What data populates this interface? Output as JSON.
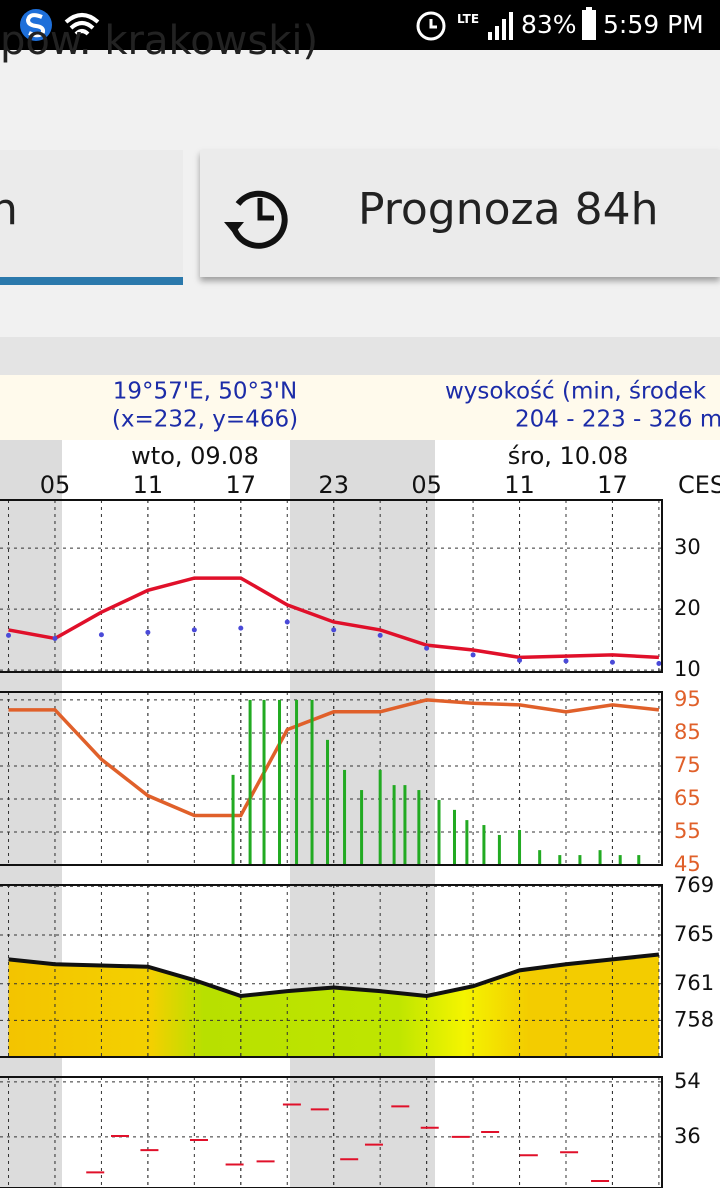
{
  "status_bar": {
    "network": "LTE",
    "battery": "83%",
    "time": "5:59 PM"
  },
  "header": {
    "title": "pow. krakowski)"
  },
  "tabs": [
    {
      "label": "h"
    },
    {
      "label": "Prognoza 84h"
    }
  ],
  "meteogram": {
    "coordinates": "19°57'E, 50°3'N",
    "grid_point": "(x=232, y=466)",
    "elevation_label": "wysokość (min, środek",
    "elevation": "204 - 223 - 326 m",
    "days": [
      "wto, 09.08",
      "śro, 10.08"
    ],
    "timezone": "CES"
  },
  "chart_data": [
    {
      "type": "line",
      "x": [
        2,
        5,
        8,
        11,
        14,
        17,
        20,
        23,
        26,
        29,
        32,
        35,
        38,
        41,
        44
      ],
      "xlim": [
        1.45,
        44.2
      ],
      "xticks": [
        {
          "value": 5,
          "label": "05"
        },
        11,
        17,
        23,
        {
          "value": 29,
          "label": "05"
        },
        {
          "value": 35,
          "label": "11"
        },
        {
          "value": 41,
          "label": "17"
        }
      ],
      "ylim": [
        9.7,
        37.9
      ],
      "yticks": [
        30,
        20,
        10
      ],
      "ytick_color": "#111111",
      "grid": true,
      "series": [
        {
          "color": "#e0102a",
          "values": [
            16.6,
            15.2,
            19.5,
            23.1,
            25.1,
            25.1,
            20.7,
            17.9,
            16.6,
            14.1,
            13.3,
            12.1,
            12.3,
            12.5,
            12.1
          ]
        },
        {
          "color": "#4a4ad8",
          "style": "dotted",
          "values": [
            15.7,
            15.2,
            15.8,
            16.2,
            16.6,
            16.9,
            17.9,
            16.6,
            15.7,
            13.6,
            12.5,
            11.6,
            11.5,
            11.3,
            11.1
          ]
        }
      ]
    },
    {
      "type": "line",
      "x": [
        2,
        5,
        8,
        11,
        14,
        17,
        20,
        23,
        26,
        29,
        32,
        35,
        38,
        41,
        44
      ],
      "xlim": [
        1.45,
        44.2
      ],
      "ylim": [
        45,
        97.4
      ],
      "yticks": [
        95,
        85,
        75,
        65,
        55,
        45
      ],
      "ytick_color": "#e0602a",
      "grid": true,
      "series": [
        {
          "color": "#e0602a",
          "values": [
            92,
            92,
            77,
            66,
            60,
            60,
            86,
            91.4,
            91.4,
            95,
            94,
            93.5,
            91.4,
            93.5,
            92
          ]
        },
        {
          "color": "#22aa22",
          "style": "bar",
          "x": [
            16.5,
            17.6,
            18.5,
            19.5,
            20.6,
            21.6,
            22.6,
            23.7,
            24.8,
            26.0,
            26.9,
            27.6,
            28.5,
            29.8,
            30.8,
            31.6,
            32.7,
            33.7,
            35.0,
            36.3,
            37.6,
            38.9,
            40.2,
            41.5,
            42.7
          ],
          "values": [
            72.3,
            95,
            95,
            95,
            95,
            95,
            82.9,
            73.8,
            67.7,
            73.8,
            69.2,
            69.2,
            67.7,
            64.7,
            61.7,
            58.6,
            57.1,
            54.1,
            55.6,
            49.5,
            48,
            48,
            49.5,
            48,
            48
          ]
        }
      ]
    },
    {
      "type": "area",
      "x": [
        2,
        5,
        8,
        11,
        14,
        17,
        20,
        23,
        26,
        29,
        32,
        35,
        38,
        41,
        44
      ],
      "xlim": [
        1.45,
        44.2
      ],
      "ylim": [
        755,
        769.1
      ],
      "yticks": [
        769,
        765,
        761,
        758
      ],
      "ytick_color": "#111111",
      "grid": true,
      "series": [
        {
          "color": "#111111",
          "values": [
            763,
            762.6,
            762.5,
            762.4,
            761.3,
            760,
            760.4,
            760.7,
            760.4,
            760,
            760.8,
            762.1,
            762.6,
            763,
            763.4
          ]
        }
      ]
    },
    {
      "type": "scatter",
      "x": [
        7.6,
        9.2,
        11.1,
        14.3,
        16.6,
        18.6,
        20.3,
        22.1,
        24,
        25.6,
        27.3,
        29.2,
        31.2,
        33.1,
        35.6,
        38.2,
        40.2
      ],
      "xlim": [
        1.45,
        44.2
      ],
      "ylim": [
        19.3,
        55.6
      ],
      "yticks": [
        54,
        36
      ],
      "ytick_color": "#111111",
      "grid": true,
      "series": [
        {
          "color": "#e0102a",
          "values": [
            24.4,
            36.3,
            31.7,
            35,
            27,
            28,
            46.6,
            45,
            28.7,
            33.5,
            46,
            39,
            36,
            37.6,
            30,
            31,
            21.6
          ]
        }
      ]
    }
  ]
}
